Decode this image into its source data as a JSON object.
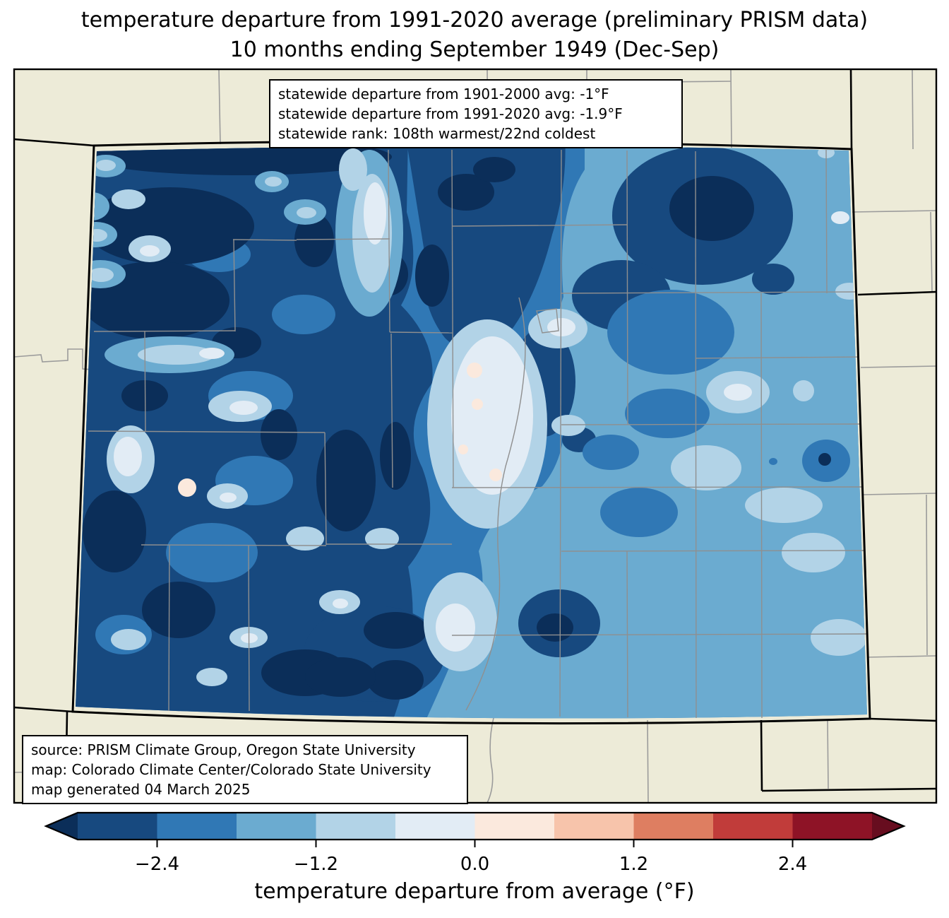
{
  "title": {
    "line1": "temperature departure from 1991-2020 average (preliminary PRISM data)",
    "line2": "10 months ending September 1949 (Dec-Sep)"
  },
  "stats_box": {
    "line1": "statewide departure from 1901-2000 avg: -1°F",
    "line2": "statewide departure from 1991-2020 avg: -1.9°F",
    "line3": "statewide rank: 108th warmest/22nd coldest"
  },
  "source_box": {
    "line1": "source: PRISM Climate Group, Oregon State University",
    "line2": "map: Colorado Climate Center/Colorado State University",
    "line3": "map generated 04 March 2025"
  },
  "colorbar": {
    "label": "temperature departure from average (°F)",
    "ticks": [
      "−2.4",
      "−1.2",
      "0.0",
      "1.2",
      "2.4"
    ],
    "tick_values": [
      -2.4,
      -1.2,
      0.0,
      1.2,
      2.4
    ],
    "range_min": -3.0,
    "range_max": 3.0,
    "under_color": "#0b2e59",
    "over_color": "#670d1f",
    "segment_colors": [
      "#17497f",
      "#3078b5",
      "#6babd0",
      "#b2d3e7",
      "#e2ecf5",
      "#fbe9dd",
      "#f7c4ab",
      "#de7e61",
      "#c13c3a",
      "#8e1326"
    ]
  },
  "map": {
    "region": "Colorado",
    "background_color": "#edebd8",
    "state_border_color": "#000000",
    "county_line_color": "#8f8f8f",
    "neighbor_county_line_color": "#9b9b9b"
  }
}
